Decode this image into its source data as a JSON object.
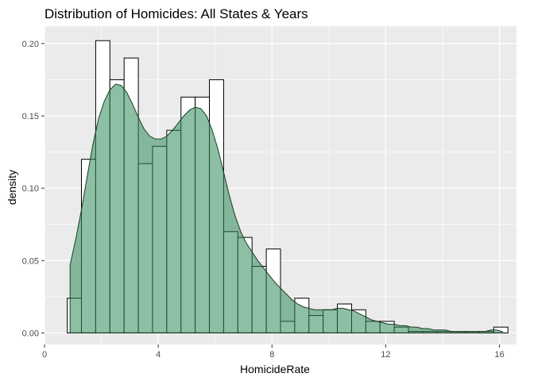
{
  "chart_data": {
    "type": "histogram",
    "title": "Distribution of Homicides: All States & Years",
    "xlabel": "HomicideRate",
    "ylabel": "density",
    "xlim": [
      0,
      16.6
    ],
    "ylim": [
      -0.008,
      0.212
    ],
    "x_ticks": [
      0,
      4,
      8,
      12,
      16
    ],
    "y_ticks": [
      0.0,
      0.05,
      0.1,
      0.15,
      0.2
    ],
    "x_tick_labels": [
      "0",
      "4",
      "8",
      "12",
      "16"
    ],
    "y_tick_labels": [
      "0.00",
      "0.05",
      "0.10",
      "0.15",
      "0.20"
    ],
    "grid": true,
    "panel_background": "#ebebeb",
    "grid_color": "#ffffff",
    "bar_fill": "#ffffff",
    "bar_outline": "#000000",
    "density_fill": "#2e8b57",
    "density_alpha": 0.55,
    "density_outline": "#1a3d24",
    "histogram": {
      "bin_edges": [
        0.8,
        1.3,
        1.8,
        2.3,
        2.8,
        3.3,
        3.8,
        4.3,
        4.8,
        5.3,
        5.8,
        6.3,
        6.8,
        7.3,
        7.8,
        8.3,
        8.8,
        9.3,
        9.8,
        10.3,
        10.8,
        11.3,
        11.8,
        12.3,
        12.8,
        13.3,
        13.8,
        14.3,
        14.8,
        15.3,
        15.8,
        16.3
      ],
      "density": [
        0.024,
        0.12,
        0.202,
        0.175,
        0.19,
        0.117,
        0.129,
        0.14,
        0.163,
        0.163,
        0.175,
        0.07,
        0.066,
        0.046,
        0.058,
        0.008,
        0.024,
        0.012,
        0.016,
        0.02,
        0.016,
        0.008,
        0.008,
        0.004,
        0.001,
        0.001,
        0.001,
        0.001,
        0.001,
        0.001,
        0.004
      ]
    },
    "density_curve": {
      "x": [
        0.9,
        1.1,
        1.3,
        1.5,
        1.7,
        1.9,
        2.1,
        2.3,
        2.5,
        2.7,
        2.9,
        3.1,
        3.3,
        3.5,
        3.7,
        3.9,
        4.1,
        4.3,
        4.5,
        4.7,
        4.9,
        5.1,
        5.3,
        5.5,
        5.7,
        5.9,
        6.1,
        6.3,
        6.5,
        6.7,
        6.9,
        7.1,
        7.3,
        7.5,
        7.7,
        7.9,
        8.1,
        8.3,
        8.5,
        8.7,
        8.9,
        9.1,
        9.3,
        9.5,
        9.7,
        9.9,
        10.1,
        10.3,
        10.5,
        10.7,
        10.9,
        11.1,
        11.3,
        11.5,
        11.7,
        11.9,
        12.1,
        12.3,
        12.5,
        12.7,
        12.9,
        13.1,
        13.3,
        13.5,
        13.7,
        13.9,
        14.1,
        14.3,
        14.5,
        14.7,
        14.9,
        15.1,
        15.3,
        15.5,
        15.7,
        15.9,
        16.1
      ],
      "y": [
        0.047,
        0.065,
        0.085,
        0.108,
        0.13,
        0.148,
        0.16,
        0.168,
        0.172,
        0.171,
        0.166,
        0.158,
        0.149,
        0.141,
        0.136,
        0.134,
        0.134,
        0.136,
        0.14,
        0.145,
        0.15,
        0.154,
        0.156,
        0.155,
        0.15,
        0.14,
        0.127,
        0.111,
        0.095,
        0.081,
        0.07,
        0.062,
        0.056,
        0.05,
        0.045,
        0.04,
        0.035,
        0.031,
        0.027,
        0.023,
        0.02,
        0.018,
        0.017,
        0.016,
        0.016,
        0.016,
        0.016,
        0.017,
        0.017,
        0.016,
        0.015,
        0.013,
        0.011,
        0.009,
        0.008,
        0.007,
        0.006,
        0.006,
        0.005,
        0.005,
        0.004,
        0.004,
        0.003,
        0.003,
        0.002,
        0.002,
        0.002,
        0.001,
        0.001,
        0.001,
        0.001,
        0.001,
        0.001,
        0.001,
        0.002,
        0.002,
        0.001
      ]
    }
  }
}
